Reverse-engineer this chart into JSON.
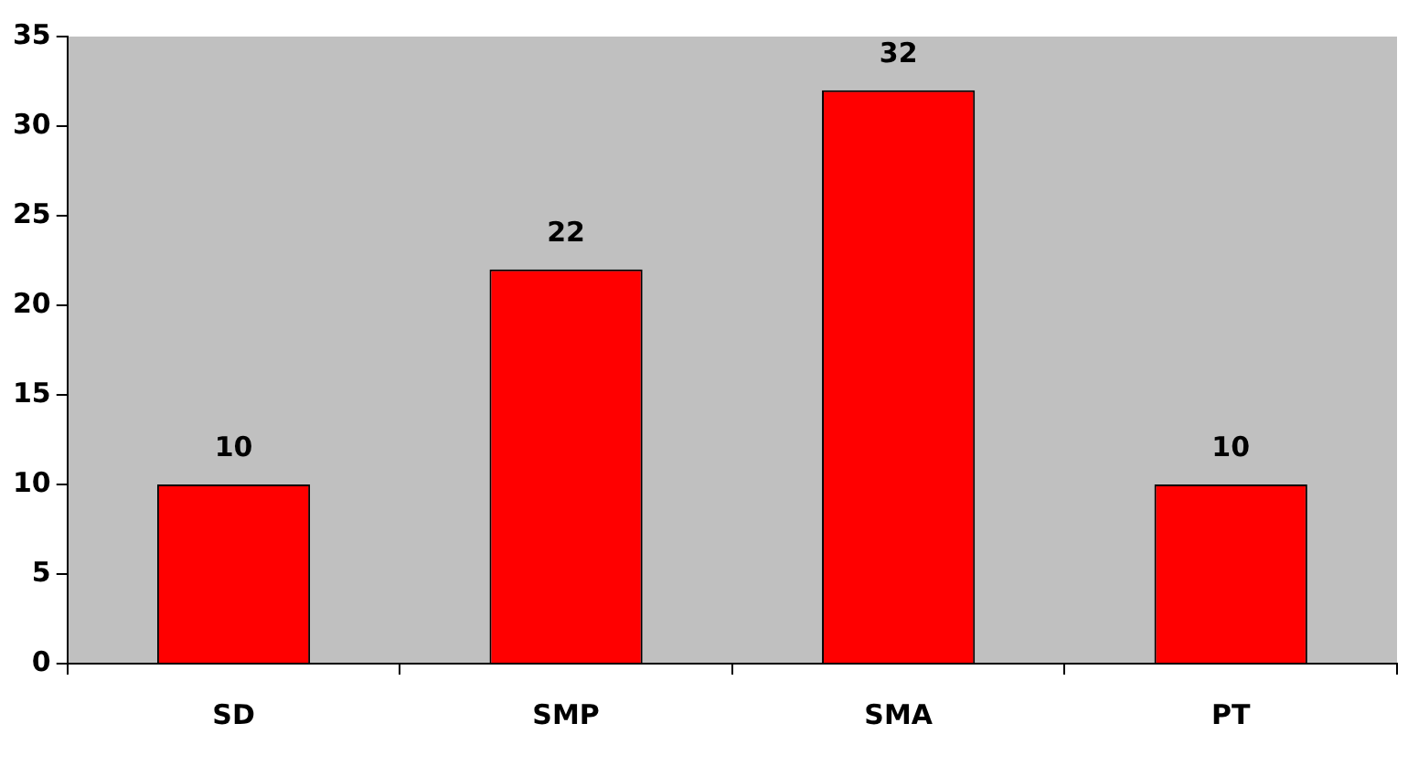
{
  "chart_data": {
    "type": "bar",
    "categories": [
      "SD",
      "SMP",
      "SMA",
      "PT"
    ],
    "values": [
      10,
      22,
      32,
      10
    ],
    "color": "#ff0000",
    "ylim": [
      0,
      35
    ],
    "yticks": [
      0,
      5,
      10,
      15,
      20,
      25,
      30,
      35
    ],
    "data_labels": true,
    "grid": false,
    "legend": false
  }
}
